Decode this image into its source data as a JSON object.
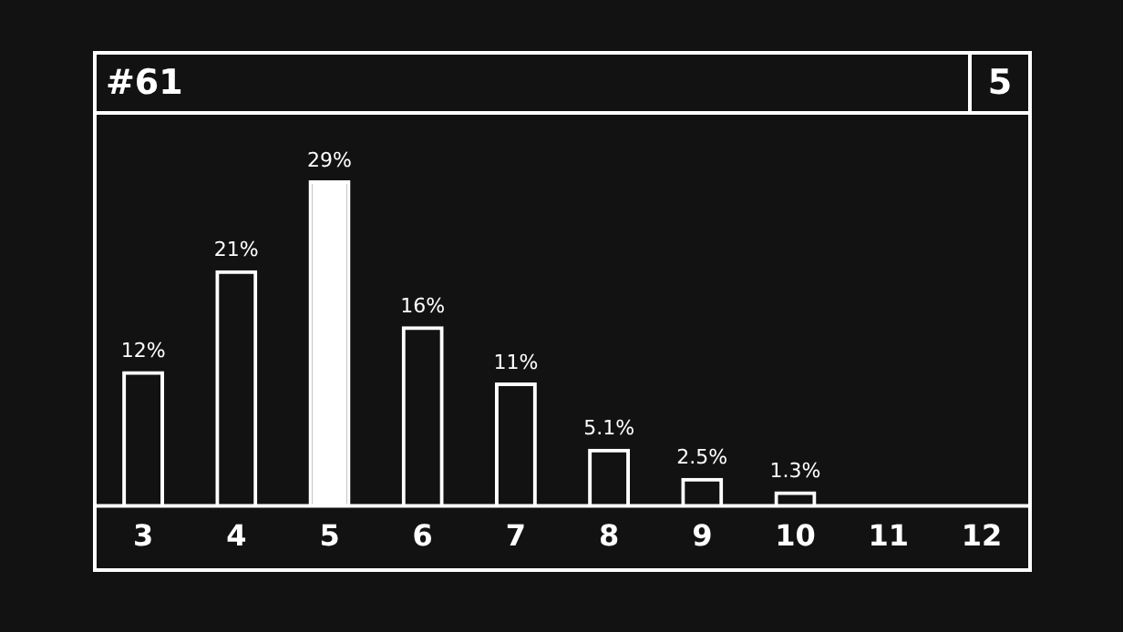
{
  "chart_data": {
    "type": "bar",
    "title": "#61",
    "subtitle": "5",
    "stacked": true,
    "categories": [
      "3",
      "4",
      "5",
      "6",
      "7",
      "8",
      "9",
      "10",
      "11",
      "12"
    ],
    "series": [
      {
        "color": "#ffffff",
        "values": [
          12,
          21,
          null,
          16,
          11,
          5.1,
          2.5,
          1.3,
          0,
          0
        ],
        "value_labels": [
          "12%",
          "21%",
          null,
          "16%",
          "11%",
          "5.1%",
          "2.5%",
          "1.3%",
          null,
          null
        ]
      },
      {
        "color": "#ffffff",
        "values": [
          null,
          null,
          29,
          null,
          null,
          null,
          null,
          null,
          null,
          null
        ],
        "value_labels": [
          null,
          null,
          "29%",
          null,
          null,
          null,
          null,
          null,
          null,
          null
        ]
      }
    ],
    "legend": false
  }
}
